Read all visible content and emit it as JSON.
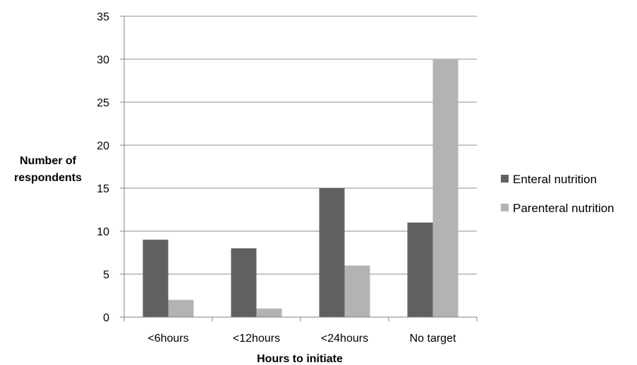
{
  "chart_data": {
    "type": "bar",
    "categories": [
      "<6hours",
      "<12hours",
      "<24hours",
      "No target"
    ],
    "series": [
      {
        "name": "Enteral nutrition",
        "values": [
          9,
          8,
          15,
          11
        ],
        "color": "#606060"
      },
      {
        "name": "Parenteral nutrition",
        "values": [
          2,
          1,
          6,
          30
        ],
        "color": "#b3b3b3"
      }
    ],
    "xlabel": "Hours to initiate",
    "ylabel": [
      "Number of",
      "respondents"
    ],
    "ylim": [
      0,
      35
    ],
    "yticks": [
      0,
      5,
      10,
      15,
      20,
      25,
      30,
      35
    ],
    "grid": true,
    "legend_position": "right"
  }
}
